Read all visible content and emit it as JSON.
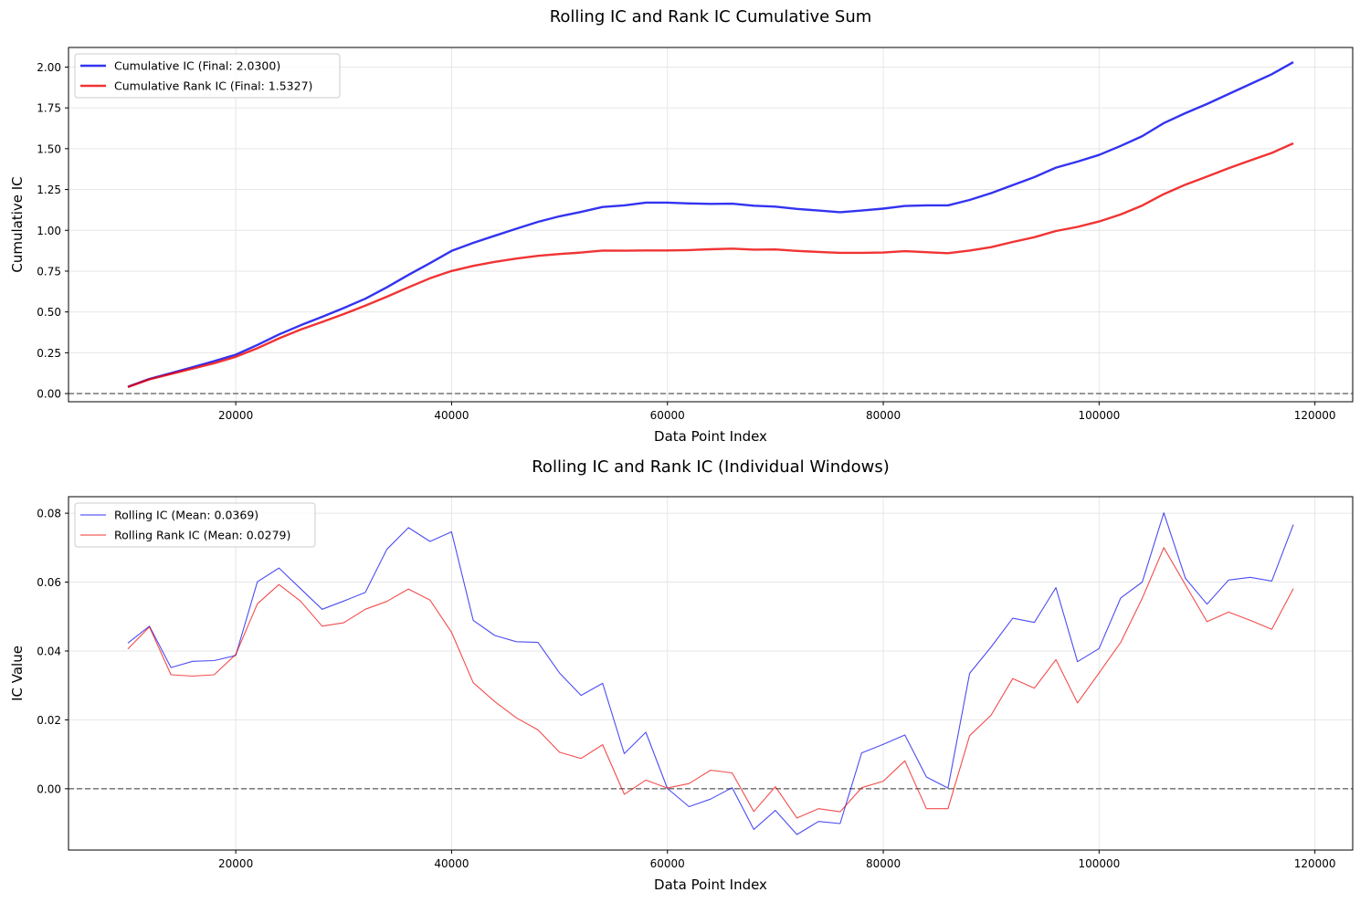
{
  "chart_data": [
    {
      "type": "line",
      "title": "Rolling IC and Rank IC Cumulative Sum",
      "xlabel": "Data Point Index",
      "ylabel": "Cumulative IC",
      "xlim": [
        4500,
        123500
      ],
      "ylim": [
        -0.05,
        2.12
      ],
      "xticks": [
        20000,
        40000,
        60000,
        80000,
        100000,
        120000
      ],
      "yticks": [
        0.0,
        0.25,
        0.5,
        0.75,
        1.0,
        1.25,
        1.5,
        1.75,
        2.0
      ],
      "ytick_labels": [
        "0.00",
        "0.25",
        "0.50",
        "0.75",
        "1.00",
        "1.25",
        "1.50",
        "1.75",
        "2.00"
      ],
      "grid": true,
      "legend_position": "upper-left",
      "reference_line": {
        "y": 0,
        "style": "dashed",
        "color": "#808080"
      },
      "x": [
        10000,
        12000,
        14000,
        16000,
        18000,
        20000,
        22000,
        24000,
        26000,
        28000,
        30000,
        32000,
        34000,
        36000,
        38000,
        40000,
        42000,
        44000,
        46000,
        48000,
        50000,
        52000,
        54000,
        56000,
        58000,
        60000,
        62000,
        64000,
        66000,
        68000,
        70000,
        72000,
        74000,
        76000,
        78000,
        80000,
        82000,
        84000,
        86000,
        88000,
        90000,
        92000,
        94000,
        96000,
        98000,
        100000,
        102000,
        104000,
        106000,
        108000,
        110000,
        112000,
        114000,
        116000,
        118000
      ],
      "series": [
        {
          "name": "Cumulative IC (Final: 2.0300)",
          "color": "#0000ee",
          "values": [
            0.042,
            0.09,
            0.125,
            0.162,
            0.199,
            0.238,
            0.298,
            0.362,
            0.418,
            0.47,
            0.524,
            0.581,
            0.651,
            0.727,
            0.799,
            0.874,
            0.923,
            0.967,
            1.01,
            1.052,
            1.086,
            1.113,
            1.143,
            1.153,
            1.17,
            1.17,
            1.165,
            1.162,
            1.163,
            1.151,
            1.145,
            1.131,
            1.121,
            1.111,
            1.121,
            1.133,
            1.149,
            1.153,
            1.153,
            1.186,
            1.228,
            1.277,
            1.326,
            1.384,
            1.421,
            1.462,
            1.517,
            1.577,
            1.657,
            1.718,
            1.774,
            1.835,
            1.896,
            1.956,
            2.03
          ]
        },
        {
          "name": "Cumulative Rank IC (Final: 1.5327)",
          "color": "#ee0000",
          "values": [
            0.04,
            0.087,
            0.12,
            0.153,
            0.186,
            0.225,
            0.278,
            0.338,
            0.392,
            0.439,
            0.487,
            0.539,
            0.593,
            0.651,
            0.706,
            0.751,
            0.782,
            0.807,
            0.827,
            0.844,
            0.855,
            0.864,
            0.876,
            0.875,
            0.877,
            0.877,
            0.879,
            0.884,
            0.888,
            0.882,
            0.883,
            0.874,
            0.868,
            0.862,
            0.862,
            0.864,
            0.872,
            0.866,
            0.86,
            0.876,
            0.897,
            0.929,
            0.958,
            0.996,
            1.021,
            1.054,
            1.097,
            1.152,
            1.222,
            1.28,
            1.329,
            1.38,
            1.428,
            1.474,
            1.533
          ]
        }
      ]
    },
    {
      "type": "line",
      "title": "Rolling IC and Rank IC (Individual Windows)",
      "xlabel": "Data Point Index",
      "ylabel": "IC Value",
      "xlim": [
        4500,
        123500
      ],
      "ylim": [
        -0.0178,
        0.0848
      ],
      "xticks": [
        20000,
        40000,
        60000,
        80000,
        100000,
        120000
      ],
      "yticks": [
        0.0,
        0.02,
        0.04,
        0.06,
        0.08
      ],
      "ytick_labels": [
        "0.00",
        "0.02",
        "0.04",
        "0.06",
        "0.08"
      ],
      "grid": true,
      "legend_position": "upper-left",
      "reference_line": {
        "y": 0,
        "style": "dashed",
        "color": "#808080"
      },
      "x": [
        10000,
        12000,
        14000,
        16000,
        18000,
        20000,
        22000,
        24000,
        26000,
        28000,
        30000,
        32000,
        34000,
        36000,
        38000,
        40000,
        42000,
        44000,
        46000,
        48000,
        50000,
        52000,
        54000,
        56000,
        58000,
        60000,
        62000,
        64000,
        66000,
        68000,
        70000,
        72000,
        74000,
        76000,
        78000,
        80000,
        82000,
        84000,
        86000,
        88000,
        90000,
        92000,
        94000,
        96000,
        98000,
        100000,
        102000,
        104000,
        106000,
        108000,
        110000,
        112000,
        114000,
        116000,
        118000
      ],
      "series": [
        {
          "name": "Rolling IC (Mean: 0.0369)",
          "color": "#0000ee",
          "values": [
            0.0423,
            0.0472,
            0.0352,
            0.037,
            0.0372,
            0.0387,
            0.0601,
            0.0641,
            0.0581,
            0.0521,
            0.0545,
            0.057,
            0.0695,
            0.0758,
            0.0718,
            0.0746,
            0.0489,
            0.0445,
            0.0427,
            0.0425,
            0.0336,
            0.0271,
            0.0306,
            0.0102,
            0.0164,
            0.0001,
            -0.0052,
            -0.003,
            0.0003,
            -0.0118,
            -0.0063,
            -0.0133,
            -0.0095,
            -0.0101,
            0.0104,
            0.0129,
            0.0156,
            0.0034,
            0.0002,
            0.0335,
            0.0412,
            0.0495,
            0.0483,
            0.0584,
            0.0369,
            0.0407,
            0.0554,
            0.06,
            0.0801,
            0.0611,
            0.0536,
            0.0606,
            0.0614,
            0.0603,
            0.0767
          ]
        },
        {
          "name": "Rolling Rank IC (Mean: 0.0279)",
          "color": "#ee0000",
          "values": [
            0.0406,
            0.047,
            0.0331,
            0.0327,
            0.0331,
            0.039,
            0.0537,
            0.0593,
            0.0545,
            0.0472,
            0.0482,
            0.0521,
            0.0544,
            0.058,
            0.0548,
            0.0454,
            0.0308,
            0.0253,
            0.0206,
            0.0171,
            0.0106,
            0.0088,
            0.0128,
            -0.0016,
            0.0025,
            0.0002,
            0.0015,
            0.0054,
            0.0046,
            -0.0066,
            0.0006,
            -0.0085,
            -0.0058,
            -0.0067,
            0.0003,
            0.0022,
            0.0081,
            -0.0058,
            -0.0058,
            0.0154,
            0.0214,
            0.032,
            0.0292,
            0.0375,
            0.0249,
            0.0336,
            0.0425,
            0.0553,
            0.07,
            0.0592,
            0.0485,
            0.0513,
            0.0489,
            0.0463,
            0.0581
          ]
        }
      ]
    }
  ]
}
